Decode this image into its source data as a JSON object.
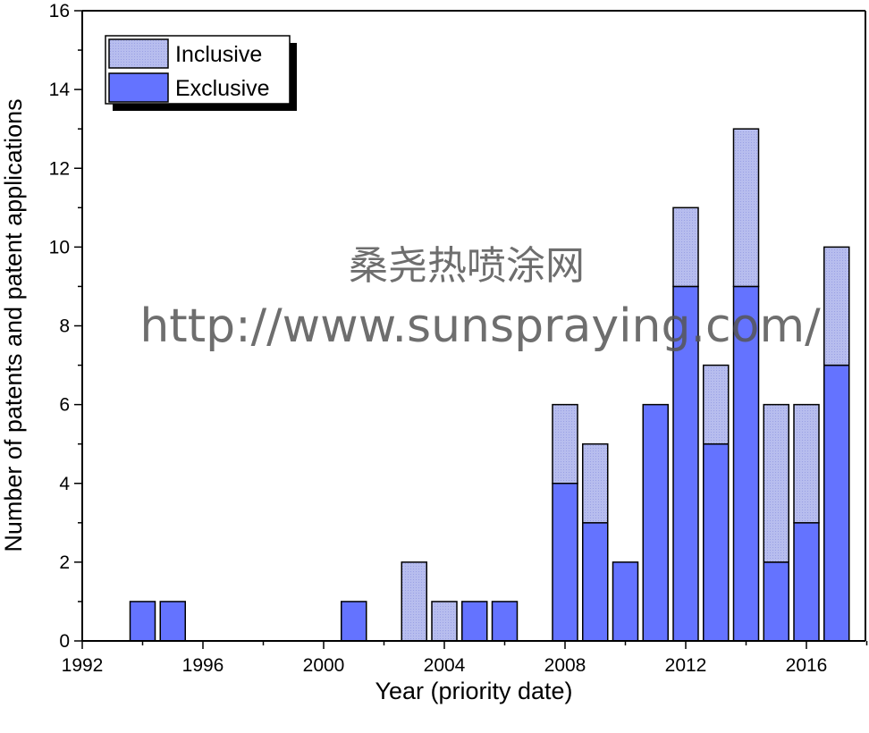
{
  "chart_data": {
    "type": "bar",
    "stacked": true,
    "title": "",
    "xlabel": "Year (priority date)",
    "ylabel": "Number of patents and patent applications",
    "xlim": [
      1992,
      2018
    ],
    "ylim": [
      0,
      16
    ],
    "x_ticks": [
      "1992",
      "1996",
      "2000",
      "2004",
      "2008",
      "2012",
      "2016"
    ],
    "y_ticks": [
      "0",
      "2",
      "4",
      "6",
      "8",
      "10",
      "12",
      "14",
      "16"
    ],
    "x": [
      1994,
      1995,
      2001,
      2003,
      2004,
      2005,
      2006,
      2008,
      2009,
      2010,
      2011,
      2012,
      2013,
      2014,
      2015,
      2016,
      2017
    ],
    "series": [
      {
        "name": "Exclusive",
        "color": "#6473ff",
        "values": [
          1,
          1,
          1,
          0,
          0,
          1,
          1,
          4,
          3,
          2,
          6,
          9,
          5,
          9,
          2,
          3,
          7
        ]
      },
      {
        "name": "Inclusive",
        "color": "#b3b9ec",
        "values": [
          0,
          0,
          0,
          2,
          1,
          0,
          0,
          2,
          2,
          0,
          0,
          2,
          2,
          4,
          4,
          3,
          3
        ]
      }
    ],
    "legend": {
      "position": "top-left",
      "order": [
        "Inclusive",
        "Exclusive"
      ]
    },
    "grid": false
  },
  "watermark": {
    "line1": "桑尧热喷涂网",
    "line2": "http://www.sunspraying.com/"
  }
}
